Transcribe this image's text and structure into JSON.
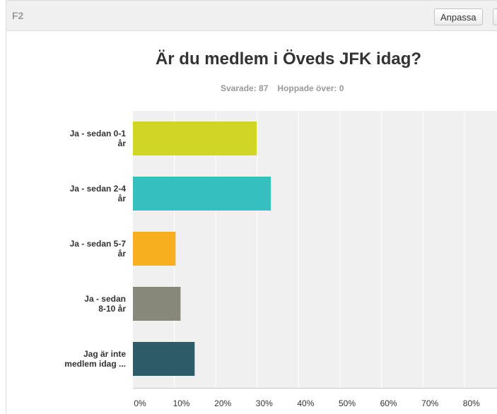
{
  "header": {
    "question_id": "F2",
    "customize_label": "Anpassa"
  },
  "stats": {
    "answered": "Svarade: 87",
    "skipped": "Hoppade över: 0"
  },
  "chart_data": {
    "type": "bar",
    "orientation": "horizontal",
    "title": "Är du medlem i Öveds JFK idag?",
    "categories": [
      [
        "Ja - sedan 0-1",
        "år"
      ],
      [
        "Ja - sedan 2-4",
        "år"
      ],
      [
        "Ja - sedan 5-7",
        "år"
      ],
      [
        "Ja - sedan",
        "8-10 år"
      ],
      [
        "Jag är inte",
        "medlem idag ..."
      ]
    ],
    "values": [
      29.9,
      33.3,
      10.3,
      11.5,
      14.9
    ],
    "colors": [
      "#d1d626",
      "#35bfbf",
      "#f7ae1f",
      "#87887a",
      "#2d5b68"
    ],
    "x_ticks": [
      "0%",
      "10%",
      "20%",
      "30%",
      "40%",
      "50%",
      "60%",
      "70%",
      "80%"
    ],
    "xlim": [
      0,
      100
    ],
    "unit": "%",
    "grid": true
  }
}
